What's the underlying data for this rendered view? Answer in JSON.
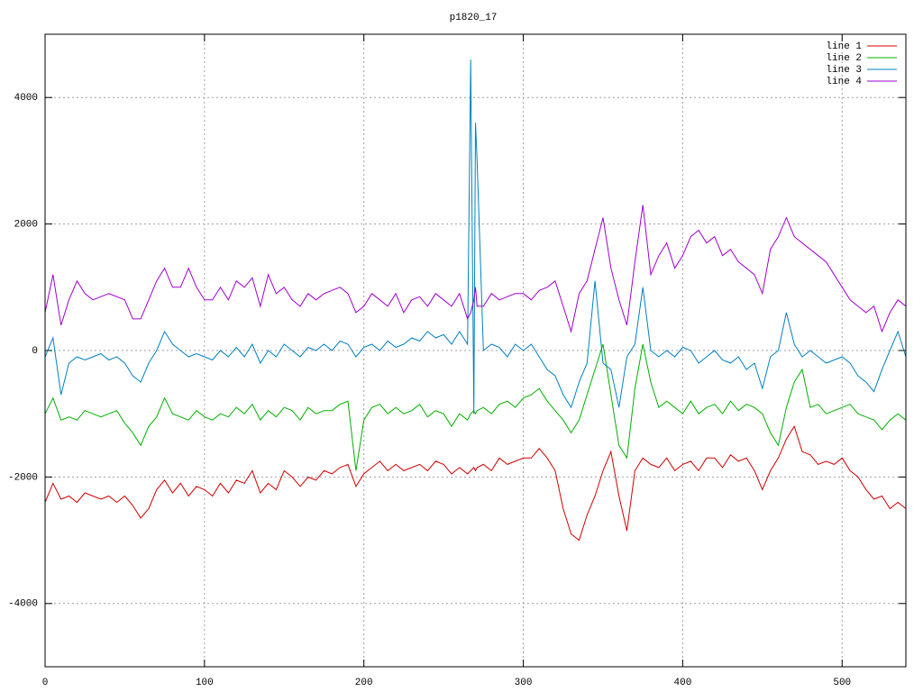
{
  "chart_data": {
    "type": "line",
    "title": "p1820_17",
    "x": [
      0,
      5,
      10,
      15,
      20,
      25,
      30,
      35,
      40,
      45,
      50,
      55,
      60,
      65,
      70,
      75,
      80,
      85,
      90,
      95,
      100,
      105,
      110,
      115,
      120,
      125,
      130,
      135,
      140,
      145,
      150,
      155,
      160,
      165,
      170,
      175,
      180,
      185,
      190,
      195,
      200,
      205,
      210,
      215,
      220,
      225,
      230,
      235,
      240,
      245,
      250,
      255,
      260,
      265,
      267,
      269,
      270,
      271,
      275,
      280,
      285,
      290,
      295,
      300,
      305,
      310,
      315,
      320,
      325,
      330,
      335,
      340,
      345,
      350,
      355,
      360,
      365,
      370,
      375,
      380,
      385,
      390,
      395,
      400,
      405,
      410,
      415,
      420,
      425,
      430,
      435,
      440,
      445,
      450,
      455,
      460,
      465,
      470,
      475,
      480,
      485,
      490,
      495,
      500,
      505,
      510,
      515,
      520,
      525,
      530,
      535,
      540
    ],
    "series": [
      {
        "name": "line 1",
        "color": "#d00000",
        "values": [
          -2400,
          -2100,
          -2350,
          -2300,
          -2400,
          -2250,
          -2300,
          -2350,
          -2300,
          -2400,
          -2300,
          -2450,
          -2650,
          -2500,
          -2200,
          -2050,
          -2250,
          -2100,
          -2300,
          -2150,
          -2200,
          -2300,
          -2100,
          -2250,
          -2050,
          -2100,
          -1900,
          -2250,
          -2100,
          -2200,
          -1900,
          -2000,
          -2150,
          -2000,
          -2050,
          -1900,
          -1950,
          -1850,
          -1800,
          -2150,
          -1950,
          -1850,
          -1750,
          -1900,
          -1800,
          -1900,
          -1850,
          -1800,
          -1900,
          -1750,
          -1800,
          -1950,
          -1850,
          -1950,
          -1900,
          -1850,
          -1900,
          -1850,
          -1800,
          -1900,
          -1700,
          -1800,
          -1750,
          -1700,
          -1700,
          -1550,
          -1700,
          -1900,
          -2500,
          -2900,
          -3000,
          -2600,
          -2300,
          -1900,
          -1600,
          -2300,
          -2850,
          -1900,
          -1700,
          -1800,
          -1850,
          -1700,
          -1900,
          -1800,
          -1750,
          -1900,
          -1700,
          -1700,
          -1850,
          -1650,
          -1750,
          -1700,
          -1900,
          -2200,
          -1900,
          -1700,
          -1400,
          -1200,
          -1600,
          -1650,
          -1800,
          -1750,
          -1800,
          -1700,
          -1900,
          -2000,
          -2200,
          -2350,
          -2300,
          -2500,
          -2400,
          -2500
        ]
      },
      {
        "name": "line 2",
        "color": "#00b000",
        "values": [
          -1000,
          -750,
          -1100,
          -1050,
          -1100,
          -950,
          -1000,
          -1050,
          -1000,
          -950,
          -1150,
          -1300,
          -1500,
          -1200,
          -1050,
          -750,
          -1000,
          -1050,
          -1100,
          -950,
          -1050,
          -1100,
          -1000,
          -1050,
          -900,
          -1000,
          -850,
          -1100,
          -950,
          -1050,
          -900,
          -950,
          -1100,
          -900,
          -1000,
          -950,
          -950,
          -850,
          -800,
          -1900,
          -1100,
          -900,
          -850,
          -1000,
          -900,
          -1000,
          -950,
          -850,
          -1050,
          -950,
          -1000,
          -1200,
          -1000,
          -1100,
          -1000,
          -950,
          -1000,
          -950,
          -900,
          -1000,
          -850,
          -800,
          -900,
          -750,
          -700,
          -600,
          -800,
          -950,
          -1100,
          -1300,
          -1100,
          -700,
          -300,
          100,
          -700,
          -1500,
          -1700,
          -600,
          100,
          -500,
          -900,
          -800,
          -900,
          -1000,
          -800,
          -1000,
          -900,
          -850,
          -1000,
          -800,
          -950,
          -850,
          -900,
          -1000,
          -1300,
          -1500,
          -900,
          -500,
          -300,
          -900,
          -850,
          -1000,
          -950,
          -900,
          -850,
          -1000,
          -1050,
          -1100,
          -1250,
          -1100,
          -1000,
          -1100
        ]
      },
      {
        "name": "line 3",
        "color": "#0080c0",
        "values": [
          -100,
          200,
          -700,
          -200,
          -100,
          -150,
          -100,
          -50,
          -150,
          -100,
          -200,
          -400,
          -500,
          -200,
          0,
          300,
          100,
          0,
          -100,
          -50,
          -100,
          -150,
          0,
          -100,
          50,
          -100,
          100,
          -200,
          0,
          -100,
          100,
          0,
          -100,
          50,
          0,
          100,
          0,
          150,
          100,
          -100,
          50,
          100,
          0,
          150,
          50,
          100,
          200,
          150,
          300,
          200,
          250,
          100,
          300,
          100,
          4600,
          -1000,
          3600,
          3000,
          0,
          100,
          50,
          -100,
          100,
          0,
          100,
          -100,
          -300,
          -400,
          -700,
          -900,
          -500,
          -200,
          1100,
          -200,
          -300,
          -900,
          -100,
          100,
          1000,
          0,
          -100,
          0,
          -100,
          50,
          0,
          -200,
          -100,
          0,
          -150,
          -200,
          -100,
          -300,
          -200,
          -600,
          -100,
          0,
          600,
          100,
          -100,
          0,
          -100,
          -200,
          -150,
          -100,
          -200,
          -400,
          -500,
          -650,
          -300,
          0,
          300,
          -100
        ]
      },
      {
        "name": "line 4",
        "color": "#a000d0",
        "values": [
          600,
          1200,
          400,
          800,
          1100,
          900,
          800,
          850,
          900,
          850,
          800,
          500,
          500,
          800,
          1100,
          1300,
          1000,
          1000,
          1300,
          1000,
          800,
          800,
          1000,
          800,
          1100,
          1000,
          1150,
          700,
          1200,
          900,
          1000,
          800,
          700,
          900,
          800,
          900,
          950,
          1000,
          900,
          600,
          700,
          900,
          800,
          700,
          900,
          600,
          800,
          850,
          700,
          900,
          800,
          700,
          900,
          500,
          600,
          800,
          1000,
          700,
          700,
          900,
          800,
          850,
          900,
          900,
          800,
          950,
          1000,
          1100,
          700,
          300,
          900,
          1100,
          1600,
          2100,
          1300,
          800,
          400,
          1400,
          2300,
          1200,
          1500,
          1700,
          1300,
          1500,
          1800,
          1900,
          1700,
          1800,
          1500,
          1600,
          1400,
          1300,
          1200,
          900,
          1600,
          1800,
          2100,
          1800,
          1700,
          1600,
          1500,
          1400,
          1200,
          1000,
          800,
          700,
          600,
          700,
          300,
          600,
          800,
          700
        ]
      }
    ],
    "xlim": [
      0,
      540
    ],
    "ylim": [
      -5000,
      5000
    ],
    "xticks": [
      0,
      100,
      200,
      300,
      400,
      500
    ],
    "yticks": [
      -4000,
      -2000,
      0,
      2000,
      4000
    ],
    "grid": true,
    "legend": "top right"
  }
}
